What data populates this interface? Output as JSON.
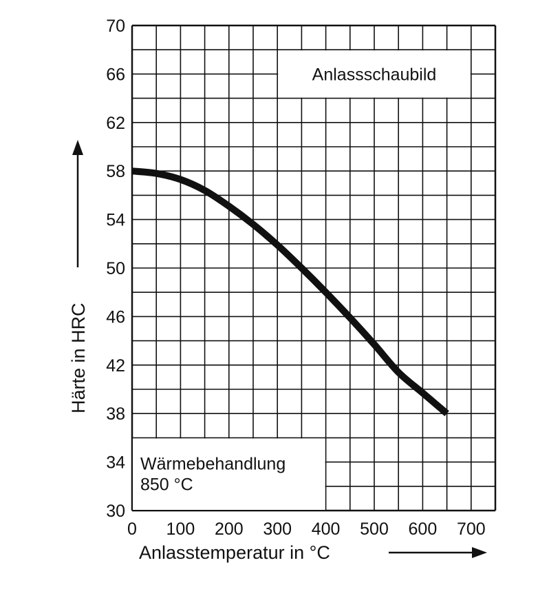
{
  "chart_data": {
    "type": "line",
    "title": "Anlassschaubild",
    "annotation": [
      "Wärmebehandlung",
      "850 °C"
    ],
    "xlabel": "Anlasstemperatur in °C",
    "ylabel": "Härte in HRC",
    "xlim": [
      0,
      750
    ],
    "ylim": [
      30,
      70
    ],
    "x_ticks": [
      "0",
      "100",
      "200",
      "300",
      "400",
      "500",
      "600",
      "700"
    ],
    "y_ticks": [
      "30",
      "34",
      "38",
      "42",
      "46",
      "50",
      "54",
      "58",
      "62",
      "66",
      "70"
    ],
    "grid": true,
    "series": [
      {
        "x": [
          0,
          50,
          100,
          150,
          200,
          250,
          300,
          350,
          400,
          450,
          500,
          550,
          600,
          650
        ],
        "y": [
          58.0,
          57.8,
          57.3,
          56.4,
          55.1,
          53.6,
          51.9,
          50.0,
          48.0,
          45.9,
          43.7,
          41.4,
          39.7,
          38.0
        ]
      }
    ],
    "colors": {
      "line": "#111111",
      "grid": "#111111",
      "background": "#ffffff"
    }
  }
}
